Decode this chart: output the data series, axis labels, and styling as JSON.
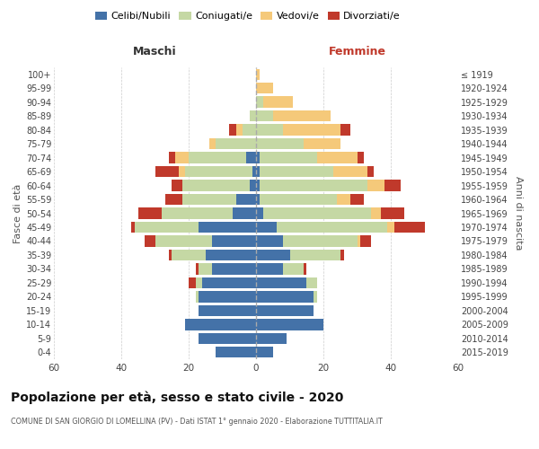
{
  "age_groups": [
    "0-4",
    "5-9",
    "10-14",
    "15-19",
    "20-24",
    "25-29",
    "30-34",
    "35-39",
    "40-44",
    "45-49",
    "50-54",
    "55-59",
    "60-64",
    "65-69",
    "70-74",
    "75-79",
    "80-84",
    "85-89",
    "90-94",
    "95-99",
    "100+"
  ],
  "birth_years": [
    "2015-2019",
    "2010-2014",
    "2005-2009",
    "2000-2004",
    "1995-1999",
    "1990-1994",
    "1985-1989",
    "1980-1984",
    "1975-1979",
    "1970-1974",
    "1965-1969",
    "1960-1964",
    "1955-1959",
    "1950-1954",
    "1945-1949",
    "1940-1944",
    "1935-1939",
    "1930-1934",
    "1925-1929",
    "1920-1924",
    "≤ 1919"
  ],
  "maschi": {
    "celibi": [
      12,
      17,
      21,
      17,
      17,
      16,
      13,
      15,
      13,
      17,
      7,
      6,
      2,
      1,
      3,
      0,
      0,
      0,
      0,
      0,
      0
    ],
    "coniugati": [
      0,
      0,
      0,
      0,
      1,
      2,
      4,
      10,
      17,
      19,
      21,
      16,
      20,
      20,
      17,
      12,
      4,
      2,
      0,
      0,
      0
    ],
    "vedovi": [
      0,
      0,
      0,
      0,
      0,
      0,
      0,
      0,
      0,
      0,
      0,
      0,
      0,
      2,
      4,
      2,
      2,
      0,
      0,
      0,
      0
    ],
    "divorziati": [
      0,
      0,
      0,
      0,
      0,
      2,
      1,
      1,
      3,
      1,
      7,
      5,
      3,
      7,
      2,
      0,
      2,
      0,
      0,
      0,
      0
    ]
  },
  "femmine": {
    "nubili": [
      5,
      9,
      20,
      17,
      17,
      15,
      8,
      10,
      8,
      6,
      2,
      1,
      1,
      1,
      1,
      0,
      0,
      0,
      0,
      0,
      0
    ],
    "coniugate": [
      0,
      0,
      0,
      0,
      1,
      3,
      6,
      15,
      22,
      33,
      32,
      23,
      32,
      22,
      17,
      14,
      8,
      5,
      2,
      0,
      0
    ],
    "vedove": [
      0,
      0,
      0,
      0,
      0,
      0,
      0,
      0,
      1,
      2,
      3,
      4,
      5,
      10,
      12,
      11,
      17,
      17,
      9,
      5,
      1
    ],
    "divorziate": [
      0,
      0,
      0,
      0,
      0,
      0,
      1,
      1,
      3,
      9,
      7,
      4,
      5,
      2,
      2,
      0,
      3,
      0,
      0,
      0,
      0
    ]
  },
  "colors": {
    "celibi_nubili": "#4472a8",
    "coniugati": "#c5d8a4",
    "vedovi": "#f5c97a",
    "divorziati": "#c0392b"
  },
  "title": "Popolazione per età, sesso e stato civile - 2020",
  "subtitle": "COMUNE DI SAN GIORGIO DI LOMELLINA (PV) - Dati ISTAT 1° gennaio 2020 - Elaborazione TUTTITALIA.IT",
  "xlabel_left": "Maschi",
  "xlabel_right": "Femmine",
  "ylabel_left": "Fasce di età",
  "ylabel_right": "Anni di nascita",
  "xlim": 60,
  "bg_color": "#ffffff",
  "grid_color": "#cccccc"
}
